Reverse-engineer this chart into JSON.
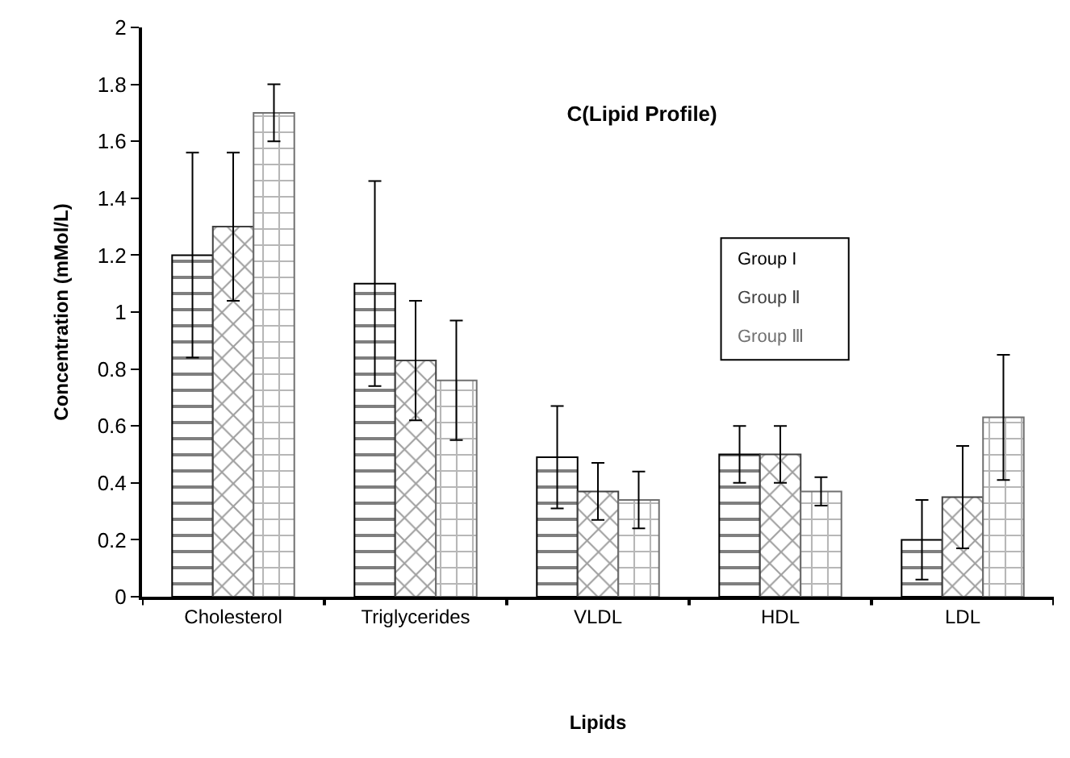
{
  "chart_data": {
    "type": "bar",
    "title": "C(Lipid Profile)",
    "xlabel": "Lipids",
    "ylabel": "Concentration (mMol/L)",
    "categories": [
      "Cholesterol",
      "Triglycerides",
      "VLDL",
      "HDL",
      "LDL"
    ],
    "series": [
      {
        "name": "Group I",
        "color": "#000000",
        "values": [
          1.2,
          1.1,
          0.49,
          0.5,
          0.2
        ],
        "errors": [
          0.36,
          0.36,
          0.18,
          0.1,
          0.14
        ]
      },
      {
        "name": "Group Ⅱ",
        "color": "#404040",
        "values": [
          1.3,
          0.83,
          0.37,
          0.5,
          0.35
        ],
        "errors": [
          0.26,
          0.21,
          0.1,
          0.1,
          0.18
        ]
      },
      {
        "name": "Group Ⅲ",
        "color": "#707070",
        "values": [
          1.7,
          0.76,
          0.34,
          0.37,
          0.63
        ],
        "errors": [
          0.1,
          0.21,
          0.1,
          0.05,
          0.22
        ]
      }
    ],
    "ylim": [
      0,
      2
    ],
    "yticks": [
      0,
      0.2,
      0.4,
      0.6,
      0.8,
      1,
      1.2,
      1.4,
      1.6,
      1.8,
      2
    ],
    "grid": false,
    "legend": "top right"
  }
}
